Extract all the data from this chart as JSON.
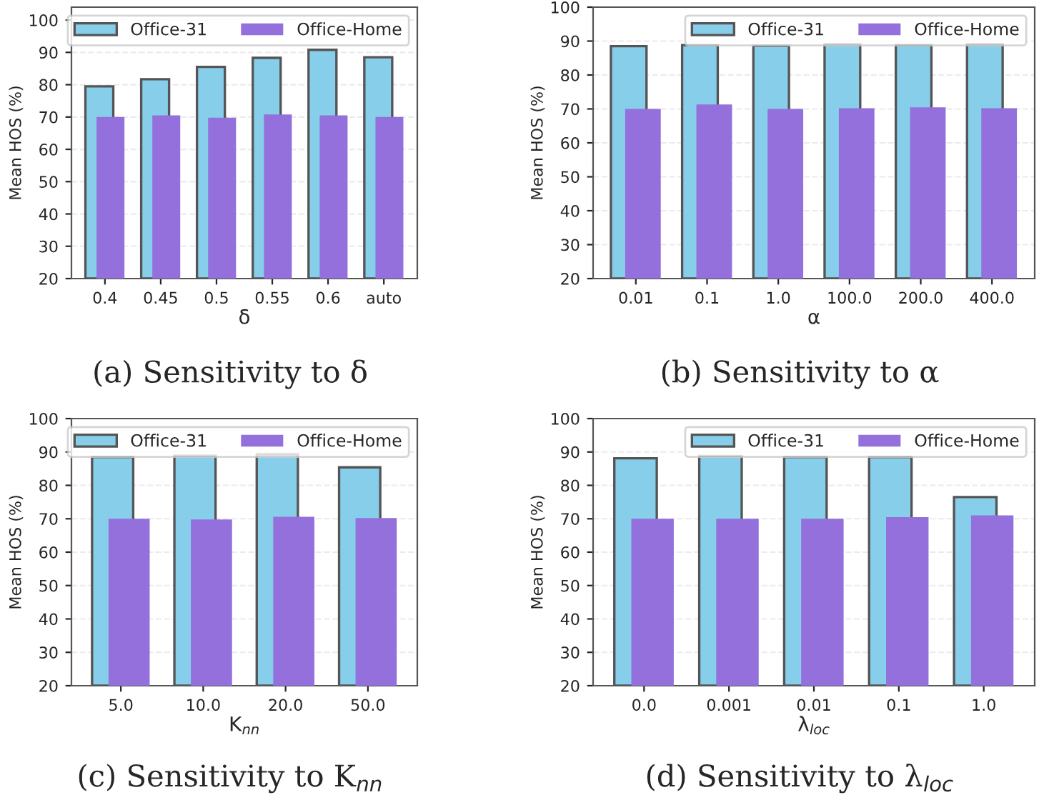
{
  "chart_data": [
    {
      "type": "bar",
      "categories": [
        "0.4",
        "0.45",
        "0.5",
        "0.55",
        "0.6",
        "auto"
      ],
      "xlabel": "δ",
      "ylabel": "Mean HOS (%)",
      "ylim": [
        20,
        104
      ],
      "yticks": [
        20,
        30,
        40,
        50,
        60,
        70,
        80,
        90,
        100
      ],
      "grid": "y",
      "legend": "top right",
      "annotations": [
        "(a) Sensitivity to δ"
      ],
      "series": [
        {
          "name": "Office-31",
          "color": "#87ceeb",
          "values": [
            79.5,
            81.7,
            85.5,
            88.3,
            90.8,
            88.5
          ]
        },
        {
          "name": "Office-Home",
          "color": "#9370db",
          "values": [
            70.0,
            70.5,
            69.8,
            70.8,
            70.5,
            70.0
          ]
        }
      ]
    },
    {
      "type": "bar",
      "categories": [
        "0.01",
        "0.1",
        "1.0",
        "100.0",
        "200.0",
        "400.0"
      ],
      "xlabel": "α",
      "ylabel": "Mean HOS (%)",
      "ylim": [
        20,
        100
      ],
      "yticks": [
        20,
        30,
        40,
        50,
        60,
        70,
        80,
        90,
        100
      ],
      "grid": "y",
      "legend": "top right",
      "annotations": [
        "(b) Sensitivity to α"
      ],
      "series": [
        {
          "name": "Office-31",
          "color": "#87ceeb",
          "values": [
            88.5,
            88.8,
            88.6,
            89.1,
            88.8,
            89.1
          ]
        },
        {
          "name": "Office-Home",
          "color": "#9370db",
          "values": [
            70.0,
            71.3,
            70.0,
            70.2,
            70.5,
            70.2
          ]
        }
      ]
    },
    {
      "type": "bar",
      "categories": [
        "5.0",
        "10.0",
        "20.0",
        "50.0"
      ],
      "xlabel": "K$_{nn}$",
      "ylabel": "Mean HOS (%)",
      "ylim": [
        20,
        100
      ],
      "yticks": [
        20,
        30,
        40,
        50,
        60,
        70,
        80,
        90,
        100
      ],
      "grid": "y",
      "legend": "top right",
      "annotations": [
        "(c) Sensitivity to K$_{nn}$"
      ],
      "series": [
        {
          "name": "Office-31",
          "color": "#87ceeb",
          "values": [
            88.5,
            88.9,
            89.3,
            85.4
          ]
        },
        {
          "name": "Office-Home",
          "color": "#9370db",
          "values": [
            70.0,
            69.8,
            70.6,
            70.2
          ]
        }
      ]
    },
    {
      "type": "bar",
      "categories": [
        "0.0",
        "0.001",
        "0.01",
        "0.1",
        "1.0"
      ],
      "xlabel": "λ$_{loc}$",
      "ylabel": "Mean HOS (%)",
      "ylim": [
        20,
        100
      ],
      "yticks": [
        20,
        30,
        40,
        50,
        60,
        70,
        80,
        90,
        100
      ],
      "grid": "y",
      "legend": "top right",
      "annotations": [
        "(d) Sensitivity to λ$_{loc}$"
      ],
      "series": [
        {
          "name": "Office-31",
          "color": "#87ceeb",
          "values": [
            88.1,
            88.8,
            88.5,
            88.5,
            76.5
          ]
        },
        {
          "name": "Office-Home",
          "color": "#9370db",
          "values": [
            70.0,
            70.0,
            70.0,
            70.5,
            71.0
          ]
        }
      ]
    }
  ]
}
